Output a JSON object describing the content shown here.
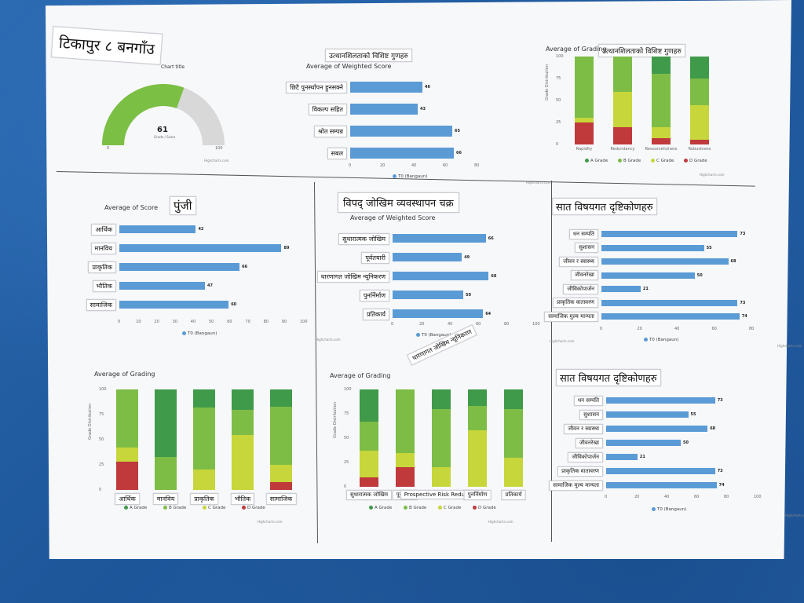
{
  "poster": {
    "main_title": "टिकापुर ८ बनगाँउ",
    "gauge": {
      "title": "Chart title",
      "value": "61",
      "sublabel": "Grade / Score",
      "min_label": "0",
      "max_label": "100",
      "fraction": 0.61
    },
    "resilience_title": "उत्थानशिलताको विशिष्ट गुणहरु",
    "resilience_title_2": "उत्थानशिलताको विशिष्ट गुणहरु",
    "capital_title": "पुंजी",
    "dmcycle_title": "विपद् जोखिम व्यवस्थापन चक्र",
    "seven_title_1": "सात विषयगत दृष्टिकोणहरु",
    "seven_title_2": "सात विषयगत दृष्टिकोणहरु",
    "drr_rotated_note": "धारणागत जोखिम न्यूनिकरण",
    "credit": "Highcharts.com",
    "series_name": "T0 (Bangaun)",
    "legend_grades": [
      "A Grade",
      "B Grade",
      "C Grade",
      "D Grade"
    ],
    "colors": {
      "blue": "#5b9bd5",
      "a": "#3f9a4a",
      "b": "#7dbd46",
      "c": "#c7d63a",
      "d": "#c0393b",
      "gauge": "#7bbf44"
    }
  },
  "chart_data": [
    {
      "type": "gauge",
      "title": "Chart title",
      "value": 61,
      "ylim": [
        0,
        100
      ]
    },
    {
      "type": "bar",
      "title": "Average of Weighted Score",
      "categories": [
        "छिटै पुनर्स्थापन हुनसक्ने",
        "विकल्प सहित",
        "श्रोत सम्पन्न",
        "सबल"
      ],
      "values": [
        46,
        43,
        65,
        66
      ],
      "ticks": [
        "0",
        "20",
        "40",
        "60",
        "80"
      ],
      "xlim": [
        0,
        80
      ],
      "legend": "T0 (Bangaun)"
    },
    {
      "type": "bar",
      "title": "Average of Grading",
      "ylabel": "Grade Distribution",
      "categories": [
        "Rapidity",
        "Redundancy",
        "Resourcefulness",
        "Robustness"
      ],
      "series": [
        {
          "name": "A Grade",
          "values": [
            0,
            0,
            20,
            25
          ]
        },
        {
          "name": "B Grade",
          "values": [
            70,
            40,
            60,
            30
          ]
        },
        {
          "name": "C Grade",
          "values": [
            5,
            40,
            13,
            40
          ]
        },
        {
          "name": "D Grade",
          "values": [
            25,
            20,
            7,
            5
          ]
        }
      ],
      "ticks": [
        "0",
        "25",
        "50",
        "75",
        "100"
      ],
      "ylim": [
        0,
        100
      ]
    },
    {
      "type": "bar",
      "title": "Average of Score",
      "categories": [
        "आर्थिक",
        "मानविय",
        "प्राकृतिक",
        "भौतिक",
        "सामाजिक"
      ],
      "values": [
        42,
        89,
        66,
        47,
        60
      ],
      "ticks": [
        "0",
        "10",
        "20",
        "30",
        "40",
        "50",
        "60",
        "70",
        "80",
        "90",
        "100"
      ],
      "xlim": [
        0,
        100
      ],
      "legend": "T0 (Bangaun)"
    },
    {
      "type": "bar",
      "title": "Average of Weighted Score",
      "categories": [
        "सुधारात्मक जोखिम",
        "पूर्वतयारी",
        "धारणागत जोखिम न्यूनिकरण",
        "पुनर्निर्माण",
        "प्रतिकार्य"
      ],
      "values": [
        66,
        49,
        68,
        50,
        64
      ],
      "ticks": [
        "0",
        "20",
        "40",
        "60",
        "80",
        "100"
      ],
      "xlim": [
        0,
        100
      ],
      "legend": "T0 (Bangaun)"
    },
    {
      "type": "bar",
      "title": "",
      "categories": [
        "धन सम्पति",
        "सुशासन",
        "जीवन र स्वास्थ्य",
        "जीवनरेखा",
        "जीविकोपार्जन",
        "प्राकृतिक वातावरण",
        "सामाजिक मुल्य मान्यता"
      ],
      "values": [
        73,
        55,
        68,
        50,
        21,
        73,
        74
      ],
      "ticks": [
        "0",
        "20",
        "40",
        "60",
        "80"
      ],
      "xlim": [
        0,
        80
      ],
      "legend": "T0 (Bangaun)"
    },
    {
      "type": "bar",
      "title": "Average of Grading",
      "ylabel": "Grade Distribution",
      "categories": [
        "आर्थिक",
        "मानविय",
        "प्राकृतिक",
        "भौतिक",
        "सामाजिक"
      ],
      "series": [
        {
          "name": "A Grade",
          "values": [
            0,
            67,
            18,
            20,
            17
          ]
        },
        {
          "name": "B Grade",
          "values": [
            58,
            33,
            62,
            25,
            58
          ]
        },
        {
          "name": "C Grade",
          "values": [
            14,
            0,
            20,
            55,
            17
          ]
        },
        {
          "name": "D Grade",
          "values": [
            28,
            0,
            0,
            0,
            8
          ]
        }
      ],
      "ticks": [
        "0",
        "25",
        "50",
        "75",
        "100"
      ],
      "ylim": [
        0,
        100
      ]
    },
    {
      "type": "bar",
      "title": "Average of Grading",
      "ylabel": "Grade Distribution",
      "categories": [
        "सुधारात्मक जोखिम",
        "पूर्वतयारी",
        "Prospective Risk Reduction",
        "पुनर्निर्माण",
        "प्रतिकार्य"
      ],
      "series": [
        {
          "name": "A Grade",
          "values": [
            33,
            0,
            20,
            17,
            20
          ]
        },
        {
          "name": "B Grade",
          "values": [
            30,
            65,
            60,
            25,
            50
          ]
        },
        {
          "name": "C Grade",
          "values": [
            27,
            15,
            20,
            58,
            30
          ]
        },
        {
          "name": "D Grade",
          "values": [
            10,
            20,
            0,
            0,
            0
          ]
        }
      ],
      "ticks": [
        "0",
        "25",
        "50",
        "75",
        "100"
      ],
      "ylim": [
        0,
        100
      ]
    },
    {
      "type": "bar",
      "title": "",
      "categories": [
        "धन सम्पति",
        "सुशासन",
        "जीवन र स्वास्थ्य",
        "जीवनरेखा",
        "जीविकोपार्जन",
        "प्राकृतिक वातावरण",
        "सामाजिक मुल्य मान्यता"
      ],
      "values": [
        73,
        55,
        68,
        50,
        21,
        73,
        74
      ],
      "ticks": [
        "0",
        "20",
        "40",
        "60",
        "80",
        "100"
      ],
      "xlim": [
        0,
        100
      ],
      "legend": "T0 (Bangaun)"
    }
  ]
}
